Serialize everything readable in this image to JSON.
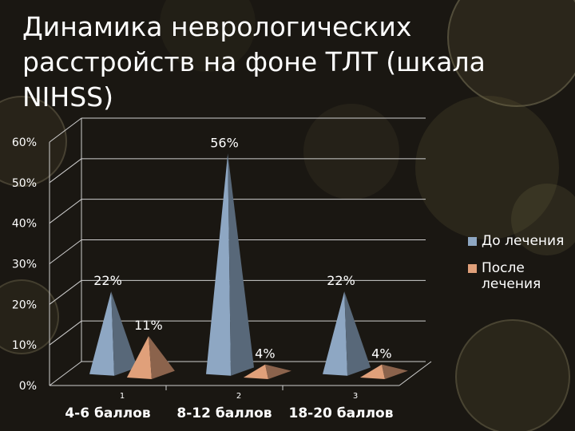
{
  "title": "Динамика неврологических расстройств на фоне ТЛТ (шкала NIHSS)",
  "chart_data": {
    "type": "bar",
    "bar_shape": "pyramid-3d",
    "categories": [
      "4-6 баллов",
      "8-12 баллов",
      "18-20 баллов"
    ],
    "category_numbers": [
      "1",
      "2",
      "3"
    ],
    "series": [
      {
        "name": "До лечения",
        "values": [
          22,
          56,
          22
        ],
        "labels": [
          "22%",
          "56%",
          "22%"
        ],
        "color": "#8ea7c3"
      },
      {
        "name": "После лечения",
        "values": [
          11,
          4,
          4
        ],
        "labels": [
          "11%",
          "4%",
          "4%"
        ],
        "color": "#e0a07a"
      }
    ],
    "y_ticks": [
      "0%",
      "10%",
      "20%",
      "30%",
      "40%",
      "50%",
      "60%"
    ],
    "ylim": [
      0,
      60
    ],
    "grid": true,
    "legend_position": "right"
  },
  "colors": {
    "background": "#1a1712",
    "text": "#ffffff",
    "grid": "#cfcfcf"
  }
}
